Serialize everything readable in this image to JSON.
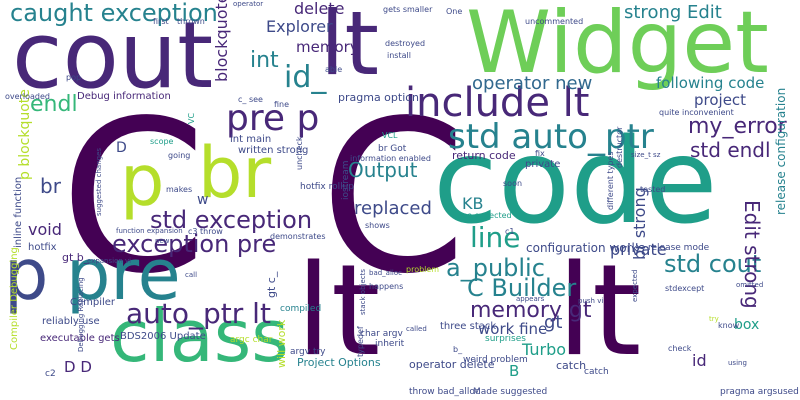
{
  "colors": {
    "dark_purple": "#440154",
    "purple": "#482878",
    "indigo": "#3e4a89",
    "blue": "#31688e",
    "teal_blue": "#26828e",
    "teal": "#1f9e89",
    "green": "#35b779",
    "light_green": "#6ece58",
    "lime": "#b5de2b",
    "yellow": "#fde725"
  },
  "words": [
    {
      "text": "C"
    },
    {
      "text": "C"
    },
    {
      "text": "code"
    },
    {
      "text": "lt"
    },
    {
      "text": "lt"
    },
    {
      "text": "cout"
    },
    {
      "text": "lt"
    },
    {
      "text": "Widget"
    },
    {
      "text": "p"
    },
    {
      "text": "br"
    },
    {
      "text": "p"
    },
    {
      "text": "pre"
    },
    {
      "text": "class"
    },
    {
      "text": "include lt"
    },
    {
      "text": "std auto_ptr"
    },
    {
      "text": "pre p"
    },
    {
      "text": "caught exception"
    },
    {
      "text": "int"
    },
    {
      "text": "id_"
    },
    {
      "text": "endl"
    },
    {
      "text": "std exception"
    },
    {
      "text": "exception pre"
    },
    {
      "text": "auto_ptr lt"
    },
    {
      "text": "line"
    },
    {
      "text": "a_public"
    },
    {
      "text": "std cout"
    },
    {
      "text": "C Builder"
    },
    {
      "text": "memory gt"
    },
    {
      "text": "Output"
    },
    {
      "text": "replaced"
    },
    {
      "text": "delete"
    },
    {
      "text": "Explorer"
    },
    {
      "text": "memory"
    },
    {
      "text": "strong Edit"
    },
    {
      "text": "operator new"
    },
    {
      "text": "following code"
    },
    {
      "text": "project"
    },
    {
      "text": "my_error"
    },
    {
      "text": "std endl"
    },
    {
      "text": "Edit strong"
    },
    {
      "text": "br strong"
    },
    {
      "text": "blockquote p"
    },
    {
      "text": "p blockquote"
    },
    {
      "text": "br"
    },
    {
      "text": "void"
    },
    {
      "text": "KB"
    },
    {
      "text": "private"
    },
    {
      "text": "work fine"
    },
    {
      "text": "gt"
    },
    {
      "text": "Turbo"
    },
    {
      "text": "id"
    },
    {
      "text": "box"
    },
    {
      "text": "D D"
    },
    {
      "text": "B"
    },
    {
      "text": "D"
    },
    {
      "text": "w"
    },
    {
      "text": "pragma option"
    },
    {
      "text": "Debug information"
    },
    {
      "text": "release configuration"
    },
    {
      "text": "configuration works"
    },
    {
      "text": "return code"
    },
    {
      "text": "int main"
    },
    {
      "text": "written strong"
    },
    {
      "text": "gt b_"
    },
    {
      "text": "catch"
    },
    {
      "text": "operator delete"
    },
    {
      "text": "Project Options"
    },
    {
      "text": "will work"
    },
    {
      "text": "gt c_"
    },
    {
      "text": "BDS2006 Update"
    },
    {
      "text": "executable gets"
    },
    {
      "text": "reliably use"
    },
    {
      "text": "Compiler"
    },
    {
      "text": "inline function"
    },
    {
      "text": "hotfix"
    },
    {
      "text": "Compiler Debugging"
    },
    {
      "text": "three stack"
    },
    {
      "text": "char argv"
    },
    {
      "text": "argv try"
    },
    {
      "text": "argc char"
    },
    {
      "text": "compiled"
    },
    {
      "text": "br Got"
    },
    {
      "text": "information enabled"
    },
    {
      "text": "hotfix rollup"
    },
    {
      "text": "iostream"
    },
    {
      "text": "stdexcept"
    },
    {
      "text": "release mode"
    },
    {
      "text": "private"
    },
    {
      "text": "throw bad_alloc"
    },
    {
      "text": "Made suggested"
    },
    {
      "text": "pragma argsused"
    },
    {
      "text": "surprises"
    },
    {
      "text": "inherit"
    },
    {
      "text": "typedef"
    },
    {
      "text": "weird problem"
    },
    {
      "text": "c2"
    },
    {
      "text": "different types"
    },
    {
      "text": "uncommented"
    },
    {
      "text": "gets smaller"
    },
    {
      "text": "One"
    },
    {
      "text": "first"
    },
    {
      "text": "thrown"
    },
    {
      "text": "operator"
    },
    {
      "text": "destroyed"
    },
    {
      "text": "install"
    },
    {
      "text": "able"
    },
    {
      "text": "pop"
    },
    {
      "text": "overloaded"
    },
    {
      "text": "c_ see"
    },
    {
      "text": "fine"
    },
    {
      "text": "quite inconvenient"
    },
    {
      "text": "VC"
    },
    {
      "text": "scope"
    },
    {
      "text": "going"
    },
    {
      "text": "makes"
    },
    {
      "text": "uncheck"
    },
    {
      "text": "VCL"
    },
    {
      "text": "fix"
    },
    {
      "text": "size_t sz"
    },
    {
      "text": "soon"
    },
    {
      "text": "tested"
    },
    {
      "text": "destructor"
    },
    {
      "text": "see expected"
    },
    {
      "text": "c1"
    },
    {
      "text": "shows"
    },
    {
      "text": "demonstrates"
    },
    {
      "text": "c3 throw"
    },
    {
      "text": "function expansion"
    },
    {
      "text": "expansion vi"
    },
    {
      "text": "suggested changes"
    },
    {
      "text": "new"
    },
    {
      "text": "call"
    },
    {
      "text": "bad_alloc"
    },
    {
      "text": "problem"
    },
    {
      "text": "happens"
    },
    {
      "text": "stack objects"
    },
    {
      "text": "called"
    },
    {
      "text": "appears"
    },
    {
      "text": "push vi"
    },
    {
      "text": "expected"
    },
    {
      "text": "omitted"
    },
    {
      "text": "know"
    },
    {
      "text": "try"
    },
    {
      "text": "check"
    },
    {
      "text": "catch"
    },
    {
      "text": "Debugging Replacing"
    },
    {
      "text": "b_"
    },
    {
      "text": "using"
    }
  ]
}
